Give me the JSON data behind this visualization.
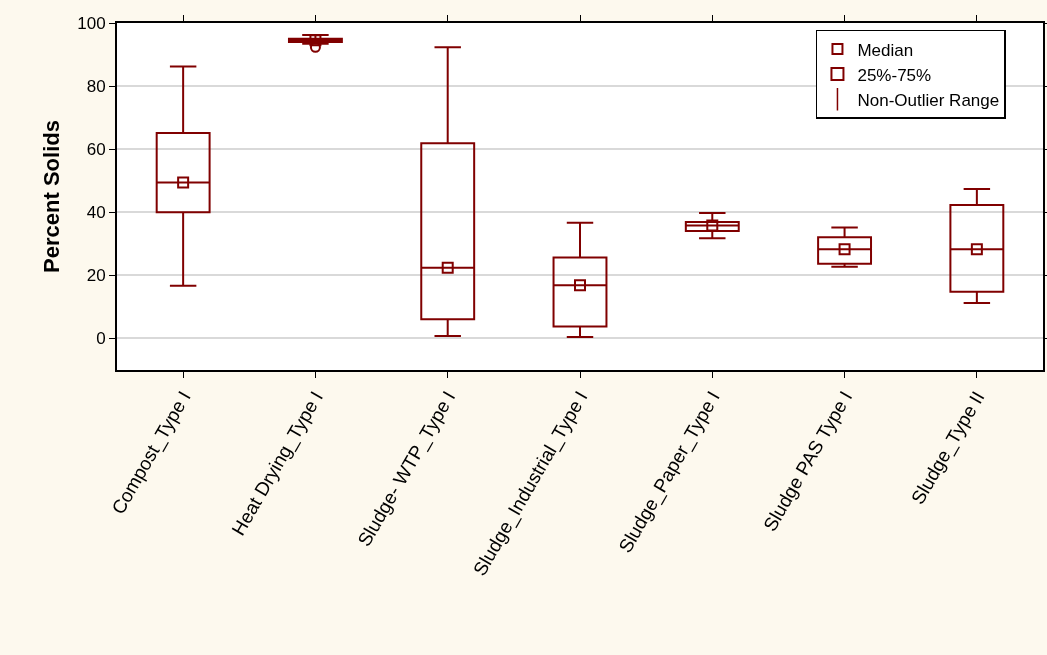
{
  "chart_data": {
    "type": "box",
    "ylabel": "Percent Solids",
    "categories": [
      "Compost_Type I",
      "Heat Drying_Type I",
      "Sludge- WTP_Type I",
      "Sludge_Industrial_Type I",
      "Sludge_Paper_Type I",
      "Sludge PAS Type I",
      "Sludge_Type II"
    ],
    "series": [
      {
        "type": "box",
        "name": "25%-75%",
        "color": "#800000",
        "boxes": [
          {
            "low": 16.7,
            "q1": 40,
            "median": 49.4,
            "q3": 65.1,
            "high": 86.2
          },
          {
            "low": 93.4,
            "q1": 94,
            "median": 94.5,
            "q3": 95,
            "high": 96.2,
            "outliers": [
              92.3
            ]
          },
          {
            "low": 0.8,
            "q1": 6.1,
            "median": 22.4,
            "q3": 61.9,
            "high": 92.3
          },
          {
            "low": 0.5,
            "q1": 3.8,
            "median": 16.9,
            "q3": 25.7,
            "high": 36.7
          },
          {
            "low": 31.8,
            "q1": 34.1,
            "median": 35.8,
            "q3": 36.9,
            "high": 39.8
          },
          {
            "low": 22.7,
            "q1": 23.7,
            "median": 28.3,
            "q3": 32.1,
            "high": 35.2
          },
          {
            "low": 11.2,
            "q1": 14.8,
            "median": 28.3,
            "q3": 42.3,
            "high": 47.4
          }
        ]
      },
      {
        "type": "scatter",
        "name": "Median",
        "color": "#800000",
        "marker": "square",
        "x": [
          "Compost_Type I",
          "Heat Drying_Type I",
          "Sludge- WTP_Type I",
          "Sludge_Industrial_Type I",
          "Sludge_Paper_Type I",
          "Sludge PAS Type I",
          "Sludge_Type II"
        ],
        "values": [
          49.4,
          94.5,
          22.4,
          16.9,
          35.8,
          28.3,
          28.3
        ]
      }
    ],
    "annotations": [
      "Non-Outlier Range"
    ],
    "ylim": [
      -10,
      100
    ],
    "yticks": [
      0,
      20,
      40,
      60,
      80,
      100
    ],
    "grid": "y",
    "legend": "top right"
  }
}
